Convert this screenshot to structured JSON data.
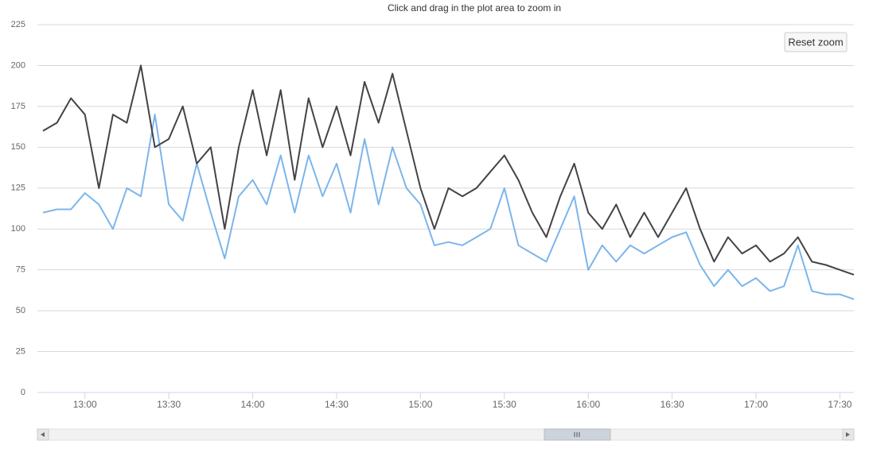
{
  "chart_data": {
    "type": "line",
    "subtitle": "Click and drag in the plot area to zoom in",
    "reset_button": "Reset zoom",
    "x": [
      "12:45",
      "12:50",
      "12:55",
      "13:00",
      "13:05",
      "13:10",
      "13:15",
      "13:20",
      "13:25",
      "13:30",
      "13:35",
      "13:40",
      "13:45",
      "13:50",
      "13:55",
      "14:00",
      "14:05",
      "14:10",
      "14:15",
      "14:20",
      "14:25",
      "14:30",
      "14:35",
      "14:40",
      "14:45",
      "14:50",
      "14:55",
      "15:00",
      "15:05",
      "15:10",
      "15:15",
      "15:20",
      "15:25",
      "15:30",
      "15:35",
      "15:40",
      "15:45",
      "15:50",
      "15:55",
      "16:00",
      "16:05",
      "16:10",
      "16:15",
      "16:20",
      "16:25",
      "16:30",
      "16:35",
      "16:40",
      "16:45",
      "16:50",
      "16:55",
      "17:00",
      "17:05",
      "17:10",
      "17:15",
      "17:20",
      "17:25",
      "17:30",
      "17:35"
    ],
    "series": [
      {
        "color": "#434348",
        "values": [
          160,
          165,
          180,
          170,
          125,
          170,
          165,
          200,
          150,
          155,
          175,
          140,
          150,
          100,
          150,
          185,
          145,
          185,
          130,
          180,
          150,
          175,
          145,
          190,
          165,
          195,
          160,
          125,
          100,
          125,
          120,
          125,
          135,
          145,
          130,
          110,
          95,
          120,
          140,
          110,
          100,
          115,
          95,
          110,
          95,
          110,
          125,
          100,
          80,
          95,
          85,
          90,
          80,
          85,
          95,
          80,
          78,
          75,
          72
        ]
      },
      {
        "color": "#7cb5ec",
        "values": [
          110,
          112,
          112,
          122,
          115,
          100,
          125,
          120,
          170,
          115,
          105,
          140,
          110,
          82,
          120,
          130,
          115,
          145,
          110,
          145,
          120,
          140,
          110,
          155,
          115,
          150,
          125,
          115,
          90,
          92,
          90,
          95,
          100,
          125,
          90,
          85,
          80,
          100,
          120,
          75,
          90,
          80,
          90,
          85,
          90,
          95,
          98,
          78,
          65,
          75,
          65,
          70,
          62,
          65,
          90,
          62,
          60,
          60,
          57
        ]
      }
    ],
    "xlim": [
      "12:43",
      "17:35"
    ],
    "xticks": [
      "13:00",
      "13:30",
      "14:00",
      "14:30",
      "15:00",
      "15:30",
      "16:00",
      "16:30",
      "17:00",
      "17:30"
    ],
    "ylim": [
      0,
      225
    ],
    "yticks": [
      0,
      25,
      50,
      75,
      100,
      125,
      150,
      175,
      200,
      225
    ],
    "grid": true
  }
}
